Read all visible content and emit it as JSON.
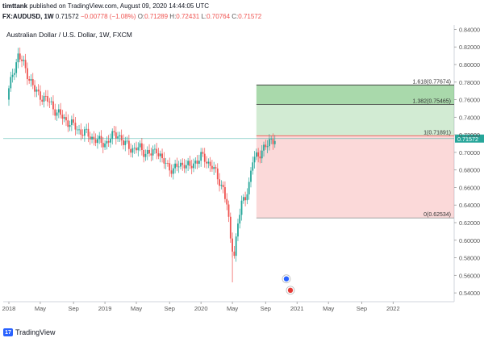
{
  "header": {
    "publisher": "timttank",
    "published_text": "published on TradingView.com, August 09, 2020 14:44:05 UTC",
    "symbol": "FX:AUDUSD, 1W",
    "last": "0.71572",
    "change": "−0.00778 (−1.08%)",
    "o_label": "O:",
    "o_value": "0.71289",
    "h_label": "H:",
    "h_value": "0.72431",
    "l_label": "L:",
    "l_value": "0.70764",
    "c_label": "C:",
    "c_value": "0.71572"
  },
  "footer": {
    "brand": "TradingView"
  },
  "colors": {
    "up": "#26a69a",
    "down": "#ef5350",
    "green_zone": "#4caf50",
    "red_zone": "#ef5350",
    "price_line": "#26a69a"
  },
  "chart_data": {
    "type": "candlestick",
    "title": "Australian Dollar / U.S. Dollar, 1W, FXCM",
    "ylim": [
      0.53,
      0.845
    ],
    "y_ticks": [
      "0.84000",
      "0.82000",
      "0.80000",
      "0.78000",
      "0.76000",
      "0.74000",
      "0.72000",
      "0.70000",
      "0.68000",
      "0.66000",
      "0.64000",
      "0.62000",
      "0.60000",
      "0.58000",
      "0.56000",
      "0.54000"
    ],
    "x_ticks": [
      "2018",
      "May",
      "Sep",
      "2019",
      "May",
      "Sep",
      "2020",
      "May",
      "Sep",
      "2021",
      "May",
      "Sep",
      "2022"
    ],
    "last_price_label": "0.71572",
    "fib_levels": [
      {
        "label": "1.618(0.77674)",
        "value": 0.77674
      },
      {
        "label": "1.382(0.75465)",
        "value": 0.75465
      },
      {
        "label": "1(0.71891)",
        "value": 0.71891
      },
      {
        "label": "0(0.62534)",
        "value": 0.62534
      }
    ],
    "path_points": [
      [
        0,
        0.76
      ],
      [
        3,
        0.79
      ],
      [
        6,
        0.81
      ],
      [
        9,
        0.8
      ],
      [
        12,
        0.785
      ],
      [
        15,
        0.77
      ],
      [
        18,
        0.765
      ],
      [
        21,
        0.76
      ],
      [
        24,
        0.755
      ],
      [
        27,
        0.745
      ],
      [
        30,
        0.74
      ],
      [
        33,
        0.735
      ],
      [
        36,
        0.73
      ],
      [
        39,
        0.725
      ],
      [
        42,
        0.722
      ],
      [
        45,
        0.718
      ],
      [
        48,
        0.715
      ],
      [
        51,
        0.71
      ],
      [
        54,
        0.712
      ],
      [
        57,
        0.718
      ],
      [
        60,
        0.722
      ],
      [
        63,
        0.71
      ],
      [
        66,
        0.707
      ],
      [
        69,
        0.703
      ],
      [
        72,
        0.705
      ],
      [
        75,
        0.7
      ],
      [
        78,
        0.697
      ],
      [
        81,
        0.705
      ],
      [
        84,
        0.69
      ],
      [
        87,
        0.685
      ],
      [
        90,
        0.68
      ],
      [
        93,
        0.685
      ],
      [
        96,
        0.688
      ],
      [
        99,
        0.682
      ],
      [
        102,
        0.69
      ],
      [
        105,
        0.695
      ],
      [
        108,
        0.69
      ],
      [
        111,
        0.685
      ],
      [
        114,
        0.67
      ],
      [
        117,
        0.66
      ],
      [
        119,
        0.64
      ],
      [
        121,
        0.6
      ],
      [
        123,
        0.585
      ],
      [
        125,
        0.62
      ],
      [
        127,
        0.64
      ],
      [
        129,
        0.65
      ],
      [
        131,
        0.665
      ],
      [
        133,
        0.69
      ],
      [
        135,
        0.695
      ],
      [
        137,
        0.7
      ],
      [
        139,
        0.705
      ],
      [
        141,
        0.707
      ],
      [
        143,
        0.715
      ],
      [
        144,
        0.716
      ]
    ]
  }
}
